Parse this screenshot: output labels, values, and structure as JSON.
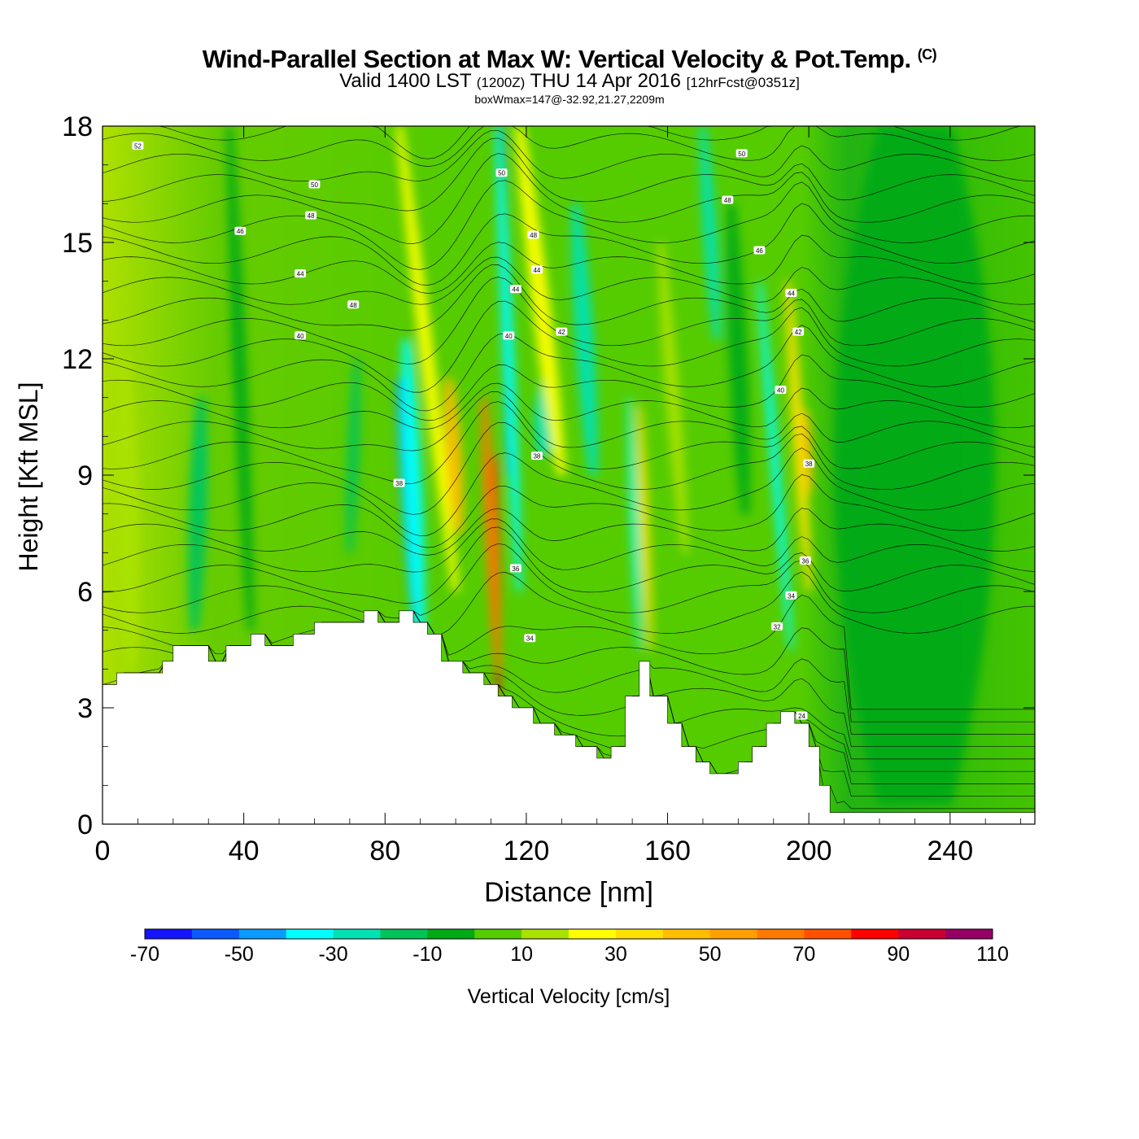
{
  "header": {
    "title": "Wind-Parallel Section at Max W: Vertical Velocity & Pot.Temp.",
    "title_mark": "(C)",
    "subtitle_a": "Valid 1400 LST",
    "subtitle_b": "(1200Z)",
    "subtitle_c": "THU 14 Apr 2016",
    "subtitle_d": "[12hrFcst@0351z]",
    "info": "boxWmax=147@-32.92,21.27,2209m"
  },
  "chart_data": {
    "type": "heatmap",
    "xlabel": "Distance [nm]",
    "ylabel": "Height [Kft MSL]",
    "xlim": [
      0,
      264
    ],
    "ylim": [
      0,
      18
    ],
    "xticks": [
      0,
      40,
      80,
      120,
      160,
      200,
      240
    ],
    "yticks": [
      0,
      3,
      6,
      9,
      12,
      15,
      18
    ],
    "terrain_kft": [
      [
        0,
        3.6
      ],
      [
        4,
        3.9
      ],
      [
        17,
        4.2
      ],
      [
        20,
        4.6
      ],
      [
        30,
        4.2
      ],
      [
        35,
        4.6
      ],
      [
        42,
        4.9
      ],
      [
        46,
        4.6
      ],
      [
        54,
        4.9
      ],
      [
        60,
        5.2
      ],
      [
        74,
        5.5
      ],
      [
        78,
        5.2
      ],
      [
        84,
        5.5
      ],
      [
        88,
        5.2
      ],
      [
        92,
        4.9
      ],
      [
        96,
        4.2
      ],
      [
        102,
        3.9
      ],
      [
        108,
        3.6
      ],
      [
        112,
        3.3
      ],
      [
        116,
        3.0
      ],
      [
        122,
        2.6
      ],
      [
        128,
        2.3
      ],
      [
        134,
        2.0
      ],
      [
        140,
        1.7
      ],
      [
        144,
        2.0
      ],
      [
        148,
        3.3
      ],
      [
        152,
        4.2
      ],
      [
        155,
        3.3
      ],
      [
        160,
        2.6
      ],
      [
        164,
        2.0
      ],
      [
        168,
        1.6
      ],
      [
        172,
        1.3
      ],
      [
        180,
        1.6
      ],
      [
        184,
        2.0
      ],
      [
        188,
        2.6
      ],
      [
        192,
        2.9
      ],
      [
        196,
        2.6
      ],
      [
        200,
        2.0
      ],
      [
        203,
        1.0
      ],
      [
        206,
        0.3
      ],
      [
        264,
        0.3
      ]
    ],
    "updrafts": [
      {
        "x_kft": 0,
        "x_top": 0,
        "peak_w": 0
      }
    ],
    "colorbar": {
      "label": "Vertical Velocity [cm/s]",
      "levels": [
        -70,
        -60,
        -50,
        -40,
        -30,
        -20,
        -10,
        0,
        10,
        20,
        30,
        40,
        50,
        60,
        70,
        80,
        90,
        100,
        110
      ],
      "tick_labels": [
        "-70",
        "-50",
        "-30",
        "-10",
        "10",
        "30",
        "50",
        "70",
        "90",
        "110"
      ],
      "colors": [
        "#1414ff",
        "#0a5aff",
        "#0a9bff",
        "#00ffff",
        "#00e1b4",
        "#00c35a",
        "#00aa14",
        "#55cc00",
        "#aae100",
        "#ffff00",
        "#ffe100",
        "#ffbe00",
        "#ffa000",
        "#ff7800",
        "#ff5000",
        "#ff0000",
        "#c80032",
        "#960064"
      ]
    },
    "contour_labels": [
      {
        "x": 10,
        "y": 17.5,
        "t": "52"
      },
      {
        "x": 60,
        "y": 16.5,
        "t": "50"
      },
      {
        "x": 59,
        "y": 15.7,
        "t": "48"
      },
      {
        "x": 39,
        "y": 15.3,
        "t": "46"
      },
      {
        "x": 56,
        "y": 14.2,
        "t": "44"
      },
      {
        "x": 71,
        "y": 13.4,
        "t": "48"
      },
      {
        "x": 56,
        "y": 12.6,
        "t": "40"
      },
      {
        "x": 84,
        "y": 8.8,
        "t": "38"
      },
      {
        "x": 113,
        "y": 16.8,
        "t": "50"
      },
      {
        "x": 122,
        "y": 15.2,
        "t": "48"
      },
      {
        "x": 123,
        "y": 14.3,
        "t": "44"
      },
      {
        "x": 117,
        "y": 13.8,
        "t": "44"
      },
      {
        "x": 115,
        "y": 12.6,
        "t": "40"
      },
      {
        "x": 130,
        "y": 12.7,
        "t": "42"
      },
      {
        "x": 123,
        "y": 9.5,
        "t": "38"
      },
      {
        "x": 117,
        "y": 6.6,
        "t": "36"
      },
      {
        "x": 121,
        "y": 4.8,
        "t": "34"
      },
      {
        "x": 181,
        "y": 17.3,
        "t": "50"
      },
      {
        "x": 177,
        "y": 16.1,
        "t": "48"
      },
      {
        "x": 186,
        "y": 14.8,
        "t": "46"
      },
      {
        "x": 195,
        "y": 13.7,
        "t": "44"
      },
      {
        "x": 197,
        "y": 12.7,
        "t": "42"
      },
      {
        "x": 192,
        "y": 11.2,
        "t": "40"
      },
      {
        "x": 200,
        "y": 9.3,
        "t": "38"
      },
      {
        "x": 199,
        "y": 6.8,
        "t": "36"
      },
      {
        "x": 195,
        "y": 5.9,
        "t": "34"
      },
      {
        "x": 191,
        "y": 5.1,
        "t": "32"
      },
      {
        "x": 198,
        "y": 2.8,
        "t": "24"
      }
    ]
  }
}
